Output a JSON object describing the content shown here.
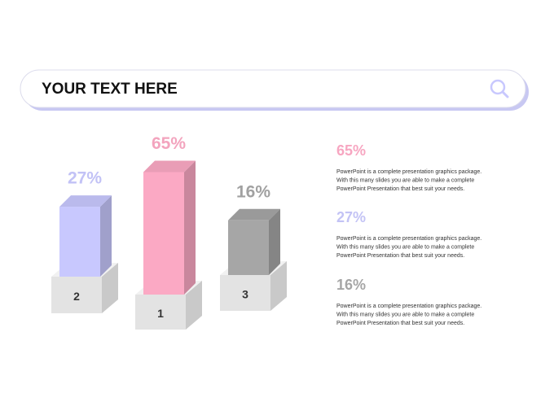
{
  "chart_data": {
    "type": "bar3d",
    "title": "YOUR TEXT HERE",
    "categories": [
      "2",
      "1",
      "3"
    ],
    "values": [
      27,
      65,
      16
    ],
    "value_labels": [
      "27%",
      "65%",
      "16%"
    ],
    "colors": [
      "#c8c8fe",
      "#fba9c4",
      "#a6a6a6"
    ],
    "annotations": [
      {
        "heading": "65%",
        "color": "#f7a6c1",
        "lines": [
          "PowerPoint is a complete presentation graphics package.",
          "With this many slides you are able to make a complete",
          "PowerPoint Presentation that best suit your needs."
        ]
      },
      {
        "heading": "27%",
        "color": "#c3c3f5",
        "lines": [
          "PowerPoint is a complete presentation graphics package.",
          "With this many slides you are able to make a complete",
          "PowerPoint Presentation that best suit your needs."
        ]
      },
      {
        "heading": "16%",
        "color": "#a6a6a6",
        "lines": [
          "PowerPoint is a complete presentation graphics package.",
          "With this many slides you are able to make a complete",
          "PowerPoint Presentation that best suit your needs."
        ]
      }
    ]
  }
}
